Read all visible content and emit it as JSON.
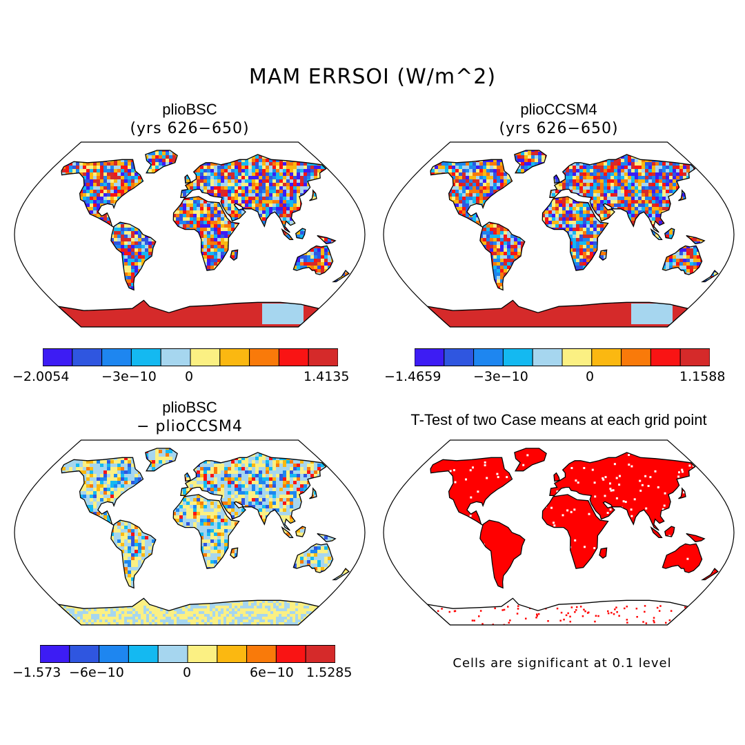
{
  "title": "MAM ERRSOI (W/m^2)",
  "panels": [
    {
      "id": "plioBSC",
      "title": "plioBSC",
      "subtitle": "(yrs 626−650)",
      "colorbar": {
        "labels": [
          "−2.0054",
          "−3e−10",
          "0",
          "1.4135"
        ]
      }
    },
    {
      "id": "plioCCSM4",
      "title": "plioCCSM4",
      "subtitle": "(yrs 626−650)",
      "colorbar": {
        "labels": [
          "−1.4659",
          "−3e−10",
          "0",
          "1.1588"
        ]
      }
    },
    {
      "id": "difference",
      "title": "plioBSC",
      "subtitle": "− plioCCSM4",
      "colorbar": {
        "labels": [
          "−1.573",
          "−6e−10",
          "0",
          "6e−10",
          "1.5285"
        ]
      }
    },
    {
      "id": "ttest",
      "title": "T-Test of two Case means at each grid point",
      "note": "Cells are significant at 0.1 level"
    }
  ],
  "palette": [
    "#3d1cf4",
    "#2f56e0",
    "#1e86f0",
    "#14b9f1",
    "#a6d6ef",
    "#fbf083",
    "#fbb811",
    "#f97a0a",
    "#f91414",
    "#d52a2a"
  ],
  "significance_color": "#ff0000"
}
